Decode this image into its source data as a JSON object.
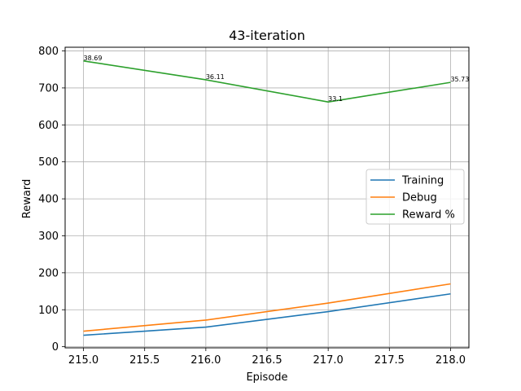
{
  "chart_data": {
    "type": "line",
    "title": "43-iteration",
    "xlabel": "Episode",
    "ylabel": "Reward",
    "x": [
      215,
      216,
      217,
      218
    ],
    "xlim": [
      214.85,
      218.15
    ],
    "ylim": [
      -3,
      810
    ],
    "xticks": [
      215.0,
      215.5,
      216.0,
      216.5,
      217.0,
      217.5,
      218.0
    ],
    "xtick_labels": [
      "215.0",
      "215.5",
      "216.0",
      "216.5",
      "217.0",
      "217.5",
      "218.0"
    ],
    "yticks": [
      0,
      100,
      200,
      300,
      400,
      500,
      600,
      700,
      800
    ],
    "ytick_labels": [
      "0",
      "100",
      "200",
      "300",
      "400",
      "500",
      "600",
      "700",
      "800"
    ],
    "grid": true,
    "legend_position": "center-right",
    "series": [
      {
        "name": "Training",
        "color": "#1f77b4",
        "values": [
          31,
          53,
          95,
          143
        ]
      },
      {
        "name": "Debug",
        "color": "#ff7f0e",
        "values": [
          42,
          72,
          118,
          170
        ]
      },
      {
        "name": "Reward %",
        "color": "#2ca02c",
        "values": [
          773,
          722,
          662,
          715
        ],
        "annotations": [
          "38.69",
          "36.11",
          "33.1",
          "35.73"
        ]
      }
    ]
  }
}
